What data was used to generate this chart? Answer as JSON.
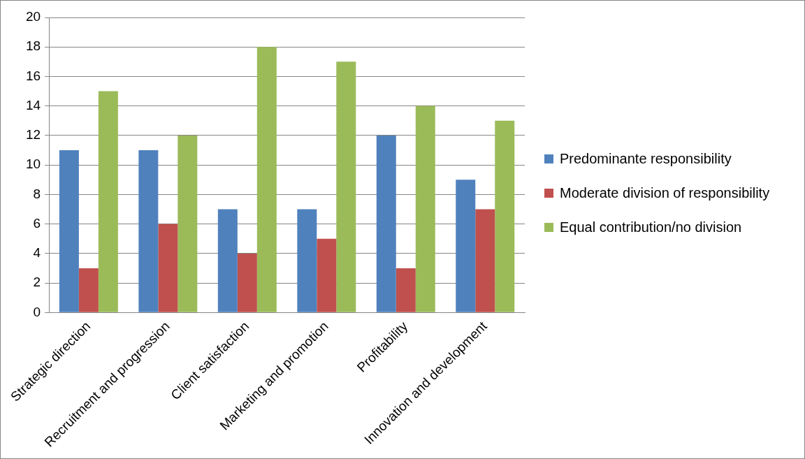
{
  "chart_data": {
    "type": "bar",
    "categories": [
      "Strategic direction",
      "Recruitment and progression",
      "Client satisfaction",
      "Marketing and promotion",
      "Profitability",
      "Innovation and development"
    ],
    "series": [
      {
        "name": "Predominante responsibility",
        "color": "#4f81bd",
        "values": [
          11,
          11,
          7,
          7,
          12,
          9
        ]
      },
      {
        "name": "Moderate division of responsibility",
        "color": "#c0504d",
        "values": [
          3,
          6,
          4,
          5,
          3,
          7
        ]
      },
      {
        "name": "Equal contribution/no division",
        "color": "#9bbb59",
        "values": [
          15,
          12,
          18,
          17,
          14,
          13
        ]
      }
    ],
    "ylim": [
      0,
      20
    ],
    "yticks": [
      0,
      2,
      4,
      6,
      8,
      10,
      12,
      14,
      16,
      18,
      20
    ],
    "grid": "y",
    "legend": "right"
  }
}
